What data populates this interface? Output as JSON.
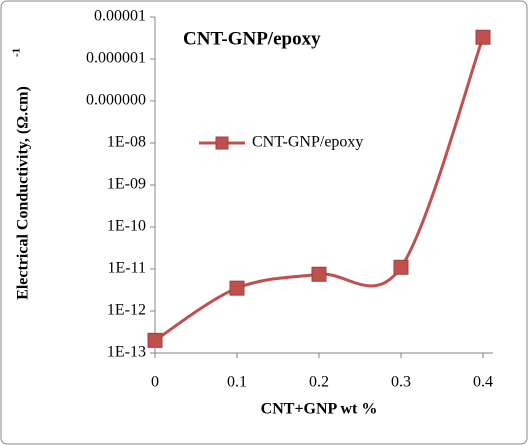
{
  "chart_data": {
    "type": "line",
    "title": "CNT-GNP/epoxy",
    "x_label": "CNT+GNP  wt %",
    "y_label": "Electrical Conductivity, (Ω.cm)",
    "y_label_exponent": "-1",
    "x": [
      0,
      0.1,
      0.2,
      0.3,
      0.4
    ],
    "series": [
      {
        "name": "CNT-GNP/epoxy",
        "color": "#c0504d",
        "values": [
          2e-13,
          3.5e-12,
          7.5e-12,
          1.1e-11,
          3.3e-06
        ]
      }
    ],
    "xlim": [
      0,
      0.4
    ],
    "xticks": [
      0,
      0.1,
      0.2,
      0.3,
      0.4
    ],
    "ylim": [
      1e-13,
      1e-05
    ],
    "yscale": "log",
    "yticks": [
      {
        "value": 1e-05,
        "label": "0.00001"
      },
      {
        "value": 1e-06,
        "label": "0.000001"
      },
      {
        "value": 1e-07,
        "label": "0.000000"
      },
      {
        "value": 1e-08,
        "label": "1E-08"
      },
      {
        "value": 1e-09,
        "label": "1E-09"
      },
      {
        "value": 1e-10,
        "label": "1E-10"
      },
      {
        "value": 1e-11,
        "label": "1E-11"
      },
      {
        "value": 1e-12,
        "label": "1E-12"
      },
      {
        "value": 1e-13,
        "label": "1E-13"
      }
    ],
    "grid": false,
    "legend": "inside-left"
  }
}
